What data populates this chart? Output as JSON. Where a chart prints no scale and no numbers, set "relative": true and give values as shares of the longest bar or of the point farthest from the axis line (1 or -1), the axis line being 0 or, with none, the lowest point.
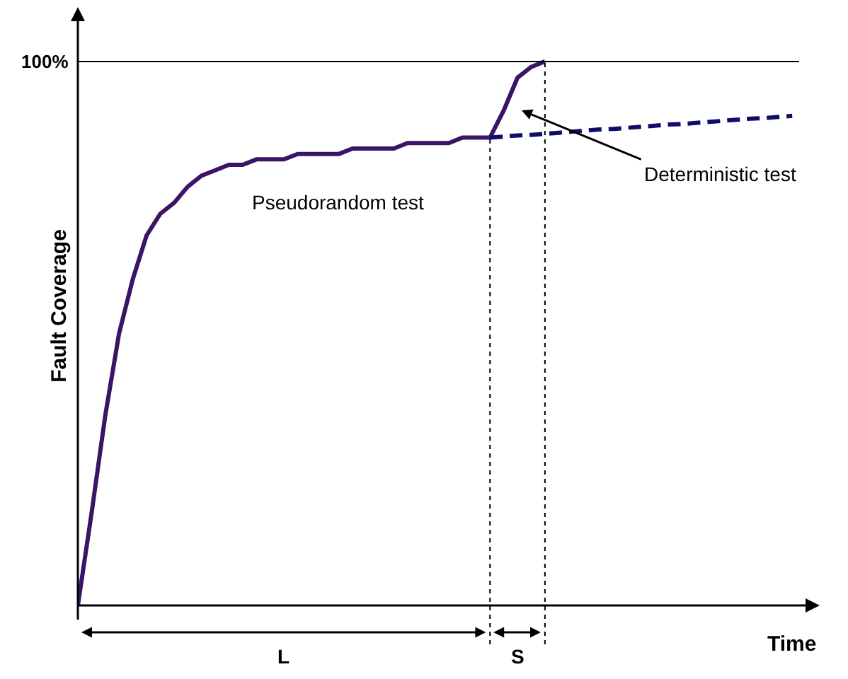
{
  "chart_data": {
    "type": "line",
    "relative": true,
    "xlabel": "Time",
    "ylabel": "Fault Coverage",
    "categories": [
      null,
      null,
      null,
      null,
      null,
      null,
      null,
      null,
      null,
      null,
      null,
      null,
      null,
      null,
      null,
      null,
      null,
      null,
      null,
      null,
      null,
      null,
      null,
      null,
      null,
      null,
      null,
      null,
      null,
      null,
      null,
      null,
      null,
      null,
      null,
      null,
      null,
      null,
      null,
      null,
      null,
      null,
      null,
      null,
      null,
      null,
      null,
      null,
      null,
      null,
      null,
      null,
      null
    ],
    "series": [
      {
        "color": "#3c1466",
        "line_style": "solid",
        "values": [
          0,
          0.17,
          0.35,
          0.5,
          0.6,
          0.68,
          0.72,
          0.74,
          0.77,
          0.79,
          0.8,
          0.81,
          0.81,
          0.82,
          0.82,
          0.82,
          0.83,
          0.83,
          0.83,
          0.83,
          0.84,
          0.84,
          0.84,
          0.84,
          0.85,
          0.85,
          0.85,
          0.85,
          0.86,
          0.86,
          0.86,
          0.91,
          0.97,
          0.99,
          1,
          null,
          null,
          null,
          null,
          null,
          null,
          null,
          null,
          null,
          null,
          null,
          null,
          null,
          null,
          null,
          null,
          null,
          null
        ]
      },
      {
        "color": "#0d0d6b",
        "line_style": "dashed",
        "values": [
          null,
          null,
          null,
          null,
          null,
          null,
          null,
          null,
          null,
          null,
          null,
          null,
          null,
          null,
          null,
          null,
          null,
          null,
          null,
          null,
          null,
          null,
          null,
          null,
          null,
          null,
          null,
          null,
          null,
          null,
          0.86,
          0.862,
          0.864,
          0.865,
          0.867,
          0.869,
          0.871,
          0.873,
          0.875,
          0.876,
          0.878,
          0.88,
          0.882,
          0.884,
          0.885,
          0.887,
          0.889,
          0.891,
          0.893,
          0.895,
          0.896,
          0.898,
          0.9
        ]
      }
    ],
    "marker": "none",
    "ref_lines": [
      {
        "axis": "y",
        "value": 1,
        "label": "100%",
        "color": "#000000",
        "line_style": "solid"
      }
    ],
    "annotations": [
      "Pseudorandom test",
      "Deterministic test",
      "L",
      "S"
    ]
  }
}
